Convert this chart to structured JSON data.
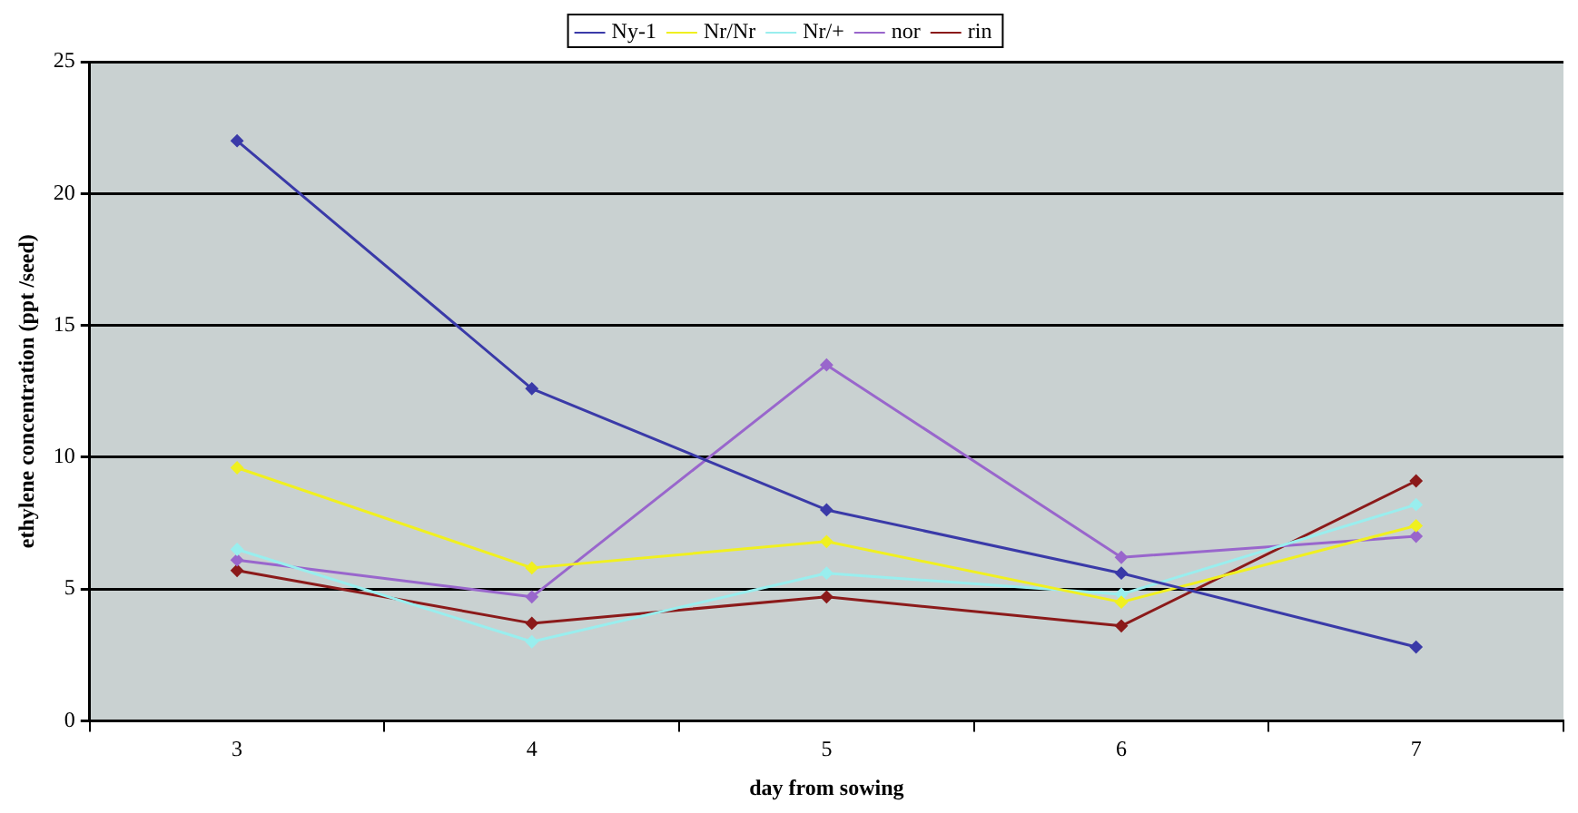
{
  "chart_data": {
    "type": "line",
    "xlabel": "day from sowing",
    "ylabel": "ethylene concentration (ppt /seed)",
    "categories": [
      "3",
      "4",
      "5",
      "6",
      "7"
    ],
    "series": [
      {
        "name": "Ny-1",
        "color": "#3a3aa8",
        "values": [
          22.0,
          12.6,
          8.0,
          5.6,
          2.8
        ]
      },
      {
        "name": "Nr/Nr",
        "color": "#f0f020",
        "values": [
          9.6,
          5.8,
          6.8,
          4.5,
          7.4
        ]
      },
      {
        "name": "Nr/+",
        "color": "#99eeee",
        "values": [
          6.5,
          3.0,
          5.6,
          4.8,
          8.2
        ]
      },
      {
        "name": "nor",
        "color": "#9966cc",
        "values": [
          6.1,
          4.7,
          13.5,
          6.2,
          7.0
        ]
      },
      {
        "name": "rin",
        "color": "#8b1a1a",
        "values": [
          5.7,
          3.7,
          4.7,
          3.6,
          9.1
        ]
      }
    ],
    "ylim": [
      0,
      25
    ],
    "yticks": [
      0,
      5,
      10,
      15,
      20,
      25
    ],
    "grid": "y",
    "legend": "top",
    "marker": "diamond",
    "line_style": "solid"
  }
}
